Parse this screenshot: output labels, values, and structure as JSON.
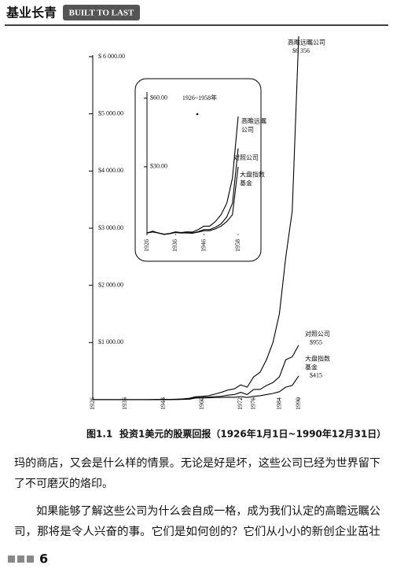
{
  "header": {
    "title": "基业长青",
    "subtitle": "BUILT TO LAST"
  },
  "chart_data": [
    {
      "type": "line",
      "x": [
        1926,
        1928,
        1930,
        1932,
        1934,
        1936,
        1938,
        1940,
        1942,
        1944,
        1946,
        1948,
        1950,
        1952,
        1954,
        1956,
        1958,
        1960,
        1962,
        1964,
        1966,
        1968,
        1970,
        1972,
        1974,
        1976,
        1978,
        1980,
        1982,
        1984,
        1986,
        1988,
        1990
      ],
      "xlim": [
        1926,
        1990
      ],
      "xticks": [
        1926,
        1936,
        1948,
        1960,
        1972,
        1976,
        1984,
        1990
      ],
      "ylim": [
        0,
        6000
      ],
      "yticks": [
        {
          "value": 1000,
          "label": "$1 000.00"
        },
        {
          "value": 2000,
          "label": "$2 000.00"
        },
        {
          "value": 3000,
          "label": "$3 000.00"
        },
        {
          "value": 4000,
          "label": "$4 000.00"
        },
        {
          "value": 5000,
          "label": "$5 000.00"
        },
        {
          "value": 6000,
          "label": "$ 6 000.00"
        }
      ],
      "series": [
        {
          "label_lines": [
            "高瞻远瞩公司"
          ],
          "color": "#000000",
          "values": [
            1,
            1.5,
            1,
            0.5,
            0.8,
            1.5,
            1.2,
            1.5,
            1.4,
            2.5,
            4,
            4,
            6,
            9,
            14,
            25,
            52,
            60,
            70,
            100,
            130,
            170,
            190,
            260,
            220,
            400,
            480,
            700,
            1000,
            1500,
            2500,
            3300,
            6356
          ],
          "value_labels": [
            null,
            null,
            null,
            null,
            null,
            null,
            null,
            null,
            null,
            null,
            null,
            null,
            null,
            null,
            null,
            null,
            null,
            null,
            null,
            null,
            null,
            null,
            null,
            null,
            null,
            null,
            null,
            null,
            null,
            null,
            null,
            null,
            "$6 356"
          ]
        },
        {
          "label_lines": [
            "对照公司"
          ],
          "color": "#000000",
          "values": [
            1,
            1.5,
            1,
            0.4,
            0.7,
            1.2,
            1,
            1.1,
            1,
            1.6,
            2.5,
            2.5,
            3.5,
            5,
            8,
            14,
            38,
            40,
            45,
            55,
            60,
            80,
            90,
            130,
            90,
            180,
            180,
            250,
            300,
            400,
            700,
            750,
            955
          ],
          "value_labels": [
            null,
            null,
            null,
            null,
            null,
            null,
            null,
            null,
            null,
            null,
            null,
            null,
            null,
            null,
            null,
            null,
            null,
            null,
            null,
            null,
            null,
            null,
            null,
            null,
            null,
            null,
            null,
            null,
            null,
            null,
            null,
            null,
            "$955"
          ]
        },
        {
          "label_lines": [
            "大盘指数",
            "基金"
          ],
          "color": "#000000",
          "values": [
            1,
            1.8,
            1,
            0.4,
            0.7,
            1.3,
            1,
            1,
            0.9,
            1.4,
            2,
            2,
            2.8,
            4,
            6,
            9,
            30,
            32,
            33,
            38,
            40,
            45,
            42,
            55,
            40,
            60,
            70,
            90,
            110,
            140,
            220,
            250,
            415
          ],
          "value_labels": [
            null,
            null,
            null,
            null,
            null,
            null,
            null,
            null,
            null,
            null,
            null,
            null,
            null,
            null,
            null,
            null,
            null,
            null,
            null,
            null,
            null,
            null,
            null,
            null,
            null,
            null,
            null,
            null,
            null,
            null,
            null,
            null,
            "$415"
          ]
        }
      ]
    },
    {
      "type": "line",
      "title": "1926~1958年",
      "x": [
        1926,
        1928,
        1930,
        1932,
        1934,
        1936,
        1938,
        1940,
        1942,
        1944,
        1946,
        1948,
        1950,
        1952,
        1954,
        1956,
        1958
      ],
      "xlim": [
        1926,
        1958
      ],
      "xticks": [
        1926,
        1936,
        1946,
        1958
      ],
      "ylim": [
        0,
        62
      ],
      "yticks": [
        {
          "value": 30,
          "label": "$30.00"
        },
        {
          "value": 60,
          "label": "$60.00"
        }
      ],
      "series": [
        {
          "label_lines": [
            "高瞻远瞩",
            "公司"
          ],
          "color": "#000000",
          "values": [
            1,
            1.5,
            1,
            0.5,
            0.8,
            1.5,
            1.2,
            1.5,
            1.4,
            2.5,
            4,
            4,
            6,
            9,
            14,
            25,
            52
          ]
        },
        {
          "label_lines": [
            "对照公司"
          ],
          "color": "#000000",
          "values": [
            1,
            1.5,
            1,
            0.4,
            0.7,
            1.2,
            1,
            1.1,
            1,
            1.6,
            2.5,
            2.5,
            3.5,
            5,
            8,
            14,
            38
          ]
        },
        {
          "label_lines": [
            "大盘指数",
            "基金"
          ],
          "color": "#000000",
          "values": [
            1,
            1.8,
            1,
            0.4,
            0.7,
            1.3,
            1,
            1,
            0.9,
            1.4,
            2,
            2,
            2.8,
            4,
            6,
            9,
            30
          ]
        }
      ]
    }
  ],
  "caption": {
    "label": "图1.1",
    "text": "投资1美元的股票回报（1926年1月1日~1990年12月31日）"
  },
  "paragraphs": [
    [
      "玛的商店，又会是什么样的情景。无论是好是坏，这些公司已经为世界留下",
      "了不可磨灭的烙印。"
    ],
    [
      "如果能够了解这些公司为什么会自成一格，成为我们认定的高瞻远瞩公",
      "司，那将是令人兴奋的事。它们是如何创的？它们从小小的新创企业茁壮"
    ]
  ],
  "page_number": 6
}
